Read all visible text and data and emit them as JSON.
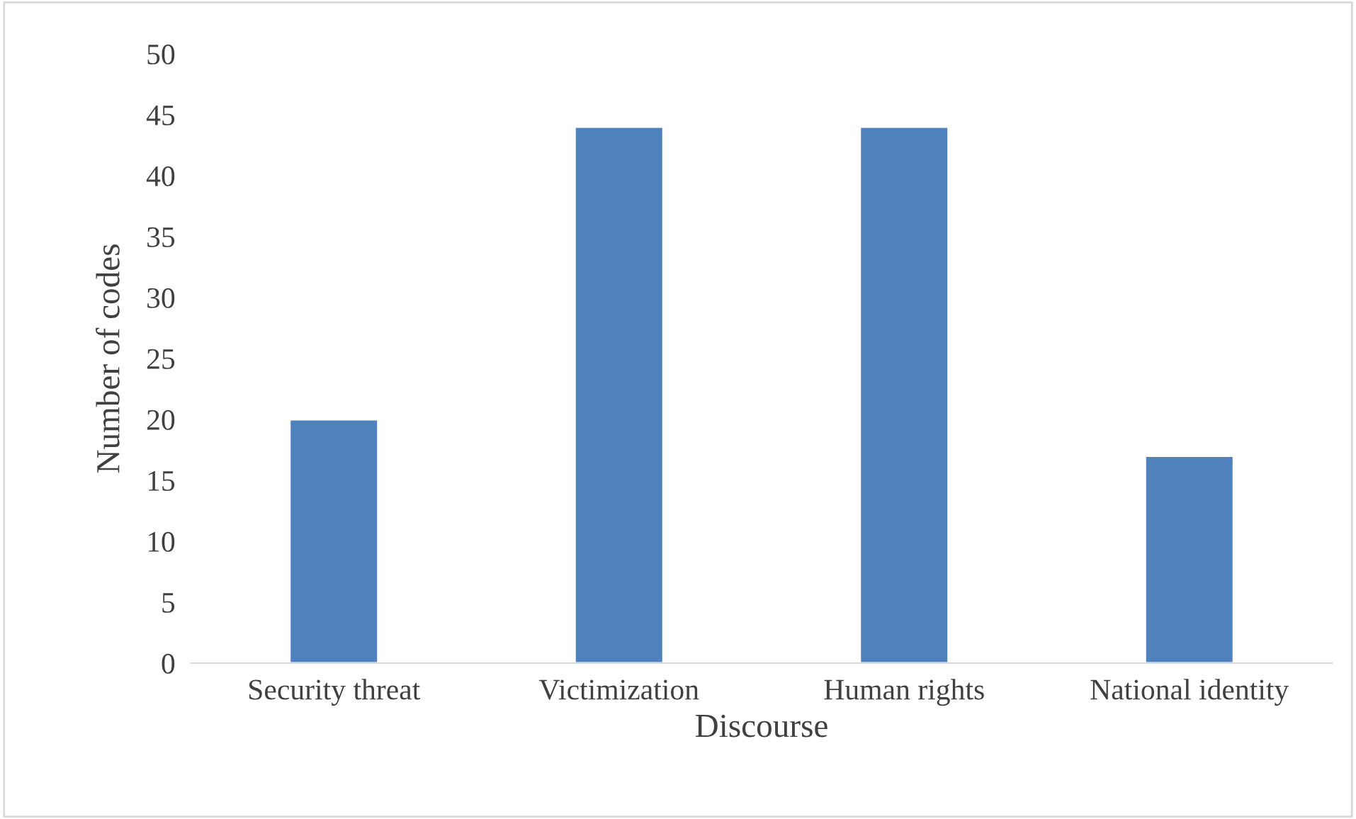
{
  "chart_data": {
    "type": "bar",
    "xlabel": "Discourse",
    "ylabel": "Number of codes",
    "categories": [
      "Security threat",
      "Victimization",
      "Human rights",
      "National identity"
    ],
    "values": [
      20,
      44,
      44,
      17
    ],
    "color": "#4f81bd",
    "ylim": [
      0,
      50
    ],
    "yticks": [
      0,
      5,
      10,
      15,
      20,
      25,
      30,
      35,
      40,
      45,
      50
    ],
    "grid": false,
    "legend": false
  }
}
